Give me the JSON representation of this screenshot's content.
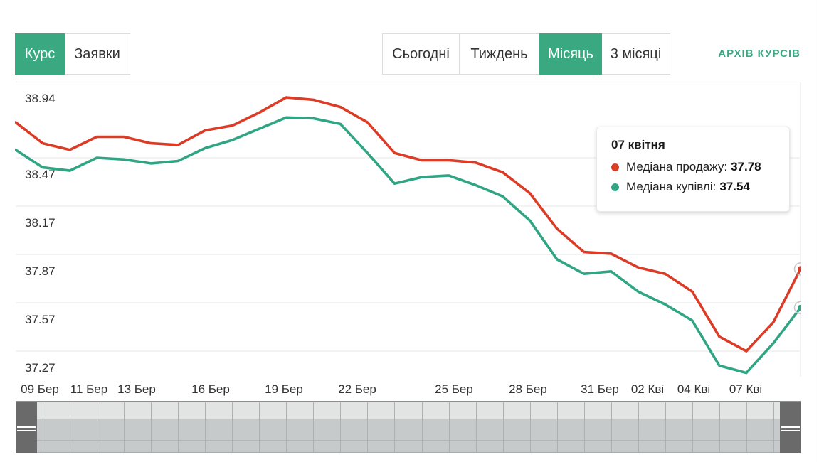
{
  "view_toggle": {
    "items": [
      {
        "label": "Курс",
        "active": true
      },
      {
        "label": "Заявки",
        "active": false
      }
    ]
  },
  "period_tabs": {
    "items": [
      {
        "label": "Сьогодні",
        "active": false
      },
      {
        "label": "Тиждень",
        "active": false
      },
      {
        "label": "Місяць",
        "active": true
      },
      {
        "label": "3 місяці",
        "active": false
      }
    ]
  },
  "archive_link_label": "АРХІВ КУРСІВ",
  "tooltip": {
    "date": "07 квітня",
    "rows": [
      {
        "label": "Медіана продажу:",
        "value": "37.78",
        "color": "#dc3b26"
      },
      {
        "label": "Медіана купівлі:",
        "value": "37.54",
        "color": "#2fa583"
      }
    ]
  },
  "colors": {
    "accent_green": "#3aa981",
    "sell_red": "#dc3b26",
    "buy_green": "#2fa583",
    "gridline": "#e7e7e7"
  },
  "chart_data": {
    "type": "line",
    "title": "",
    "grid": "horizontal",
    "y_axis": {
      "tick_labels": [
        "38.94",
        "38.47",
        "38.17",
        "37.87",
        "37.57",
        "37.27"
      ],
      "tick_values": [
        38.94,
        38.47,
        38.17,
        37.87,
        37.57,
        37.27
      ],
      "min": 37.13,
      "max": 38.94
    },
    "x_axis": {
      "tick_labels": [
        "09 Бер",
        "11 Бер",
        "13 Бер",
        "16 Бер",
        "19 Бер",
        "22 Бер",
        "25 Бер",
        "28 Бер",
        "31 Бер",
        "02 Кві",
        "04 Кві",
        "07 Кві"
      ],
      "tick_day_indices": [
        0,
        2,
        4,
        7,
        10,
        13,
        16,
        19,
        22,
        24,
        26,
        29
      ],
      "num_points": 30,
      "start_label": "09 Бер",
      "end_label": "07 Кві"
    },
    "series": [
      {
        "name": "Медіана продажу",
        "color": "#dc3b26",
        "values": [
          38.69,
          38.56,
          38.52,
          38.6,
          38.6,
          38.56,
          38.55,
          38.64,
          38.67,
          38.75,
          38.845,
          38.83,
          38.785,
          38.69,
          38.5,
          38.455,
          38.455,
          38.44,
          38.38,
          38.25,
          38.03,
          37.885,
          37.875,
          37.79,
          37.75,
          37.64,
          37.36,
          37.27,
          37.45,
          37.78
        ]
      },
      {
        "name": "Медіана купівлі",
        "color": "#2fa583",
        "values": [
          38.52,
          38.41,
          38.39,
          38.47,
          38.46,
          38.435,
          38.45,
          38.53,
          38.58,
          38.65,
          38.72,
          38.715,
          38.68,
          38.5,
          38.31,
          38.35,
          38.36,
          38.3,
          38.23,
          38.08,
          37.84,
          37.75,
          37.765,
          37.64,
          37.56,
          37.46,
          37.18,
          37.135,
          37.32,
          37.54
        ]
      }
    ],
    "hovered_last_point": {
      "date": "07 квітня",
      "sell": 37.78,
      "buy": 37.54
    }
  }
}
